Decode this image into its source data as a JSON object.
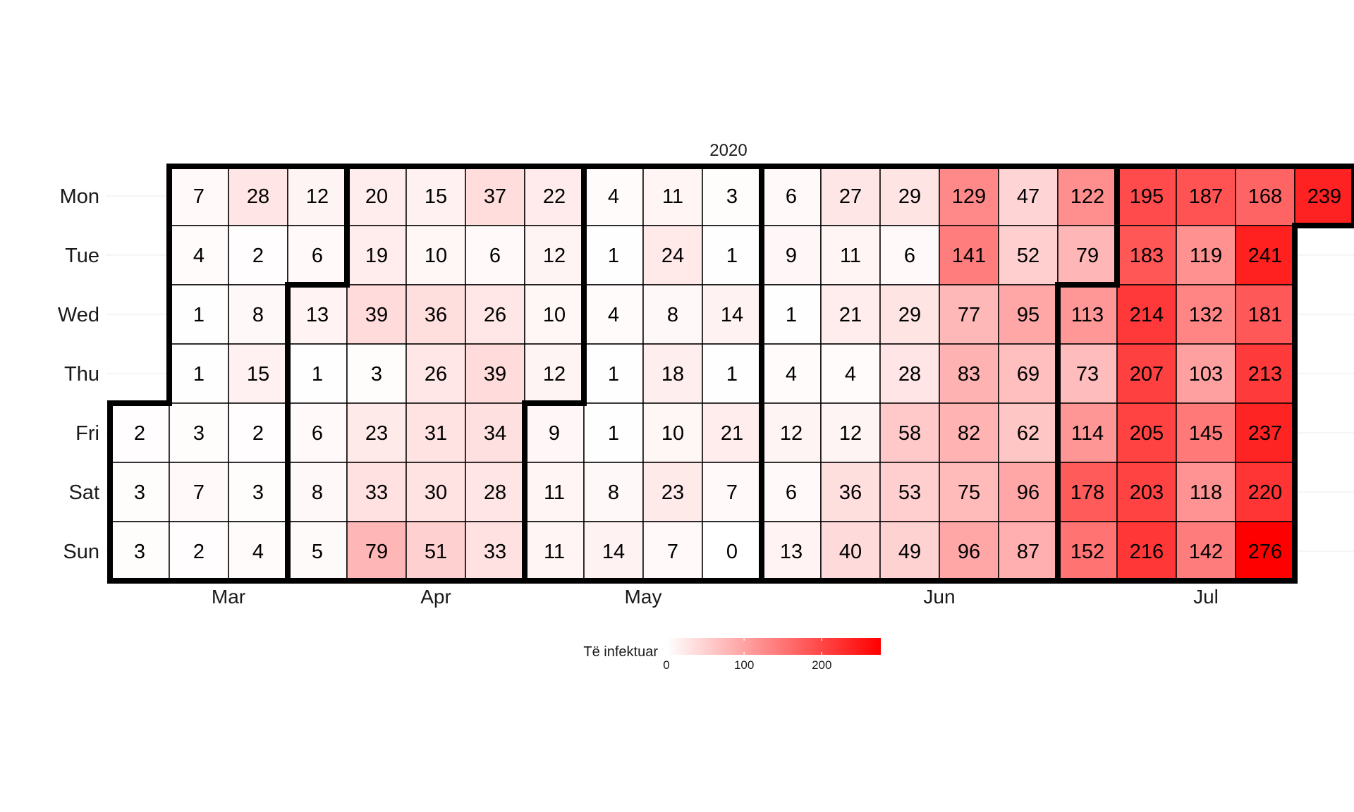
{
  "chart_data": {
    "type": "heatmap",
    "title": "2020",
    "y_categories": [
      "Mon",
      "Tue",
      "Wed",
      "Thu",
      "Fri",
      "Sat",
      "Sun"
    ],
    "x_month_labels": [
      "Mar",
      "Apr",
      "May",
      "Jun",
      "Jul"
    ],
    "weeks": [
      [
        null,
        null,
        null,
        null,
        2,
        3,
        3
      ],
      [
        7,
        4,
        1,
        1,
        3,
        7,
        2
      ],
      [
        28,
        2,
        8,
        15,
        2,
        3,
        4
      ],
      [
        12,
        6,
        13,
        1,
        6,
        8,
        5
      ],
      [
        20,
        19,
        39,
        3,
        23,
        33,
        79
      ],
      [
        15,
        10,
        36,
        26,
        31,
        30,
        51
      ],
      [
        37,
        6,
        26,
        39,
        34,
        28,
        33
      ],
      [
        22,
        12,
        10,
        12,
        9,
        11,
        11
      ],
      [
        4,
        1,
        4,
        1,
        1,
        8,
        14
      ],
      [
        11,
        24,
        8,
        18,
        10,
        23,
        7
      ],
      [
        3,
        1,
        14,
        1,
        21,
        7,
        0
      ],
      [
        6,
        9,
        1,
        4,
        12,
        6,
        13
      ],
      [
        27,
        11,
        21,
        4,
        12,
        36,
        40
      ],
      [
        29,
        6,
        29,
        28,
        58,
        53,
        49
      ],
      [
        129,
        141,
        77,
        83,
        82,
        75,
        96
      ],
      [
        47,
        52,
        95,
        69,
        62,
        96,
        87
      ],
      [
        122,
        79,
        113,
        73,
        114,
        178,
        152
      ],
      [
        195,
        183,
        214,
        207,
        205,
        203,
        216
      ],
      [
        187,
        119,
        132,
        103,
        145,
        118,
        142
      ],
      [
        168,
        241,
        181,
        213,
        237,
        220,
        276
      ],
      [
        239,
        null,
        null,
        null,
        null,
        null,
        null
      ]
    ],
    "month_start_week": [
      0,
      3,
      7,
      11,
      16
    ],
    "month_start_day": [
      4,
      2,
      4,
      0,
      2
    ],
    "last_week": 20,
    "last_day": 0,
    "legend": {
      "title": "Të infektuar",
      "ticks": [
        0,
        100,
        200
      ],
      "min": 0,
      "max": 276,
      "placement": "bottom"
    },
    "colors": {
      "low": "#ffffff",
      "high": "#ff0000",
      "grid": "#000000"
    }
  }
}
